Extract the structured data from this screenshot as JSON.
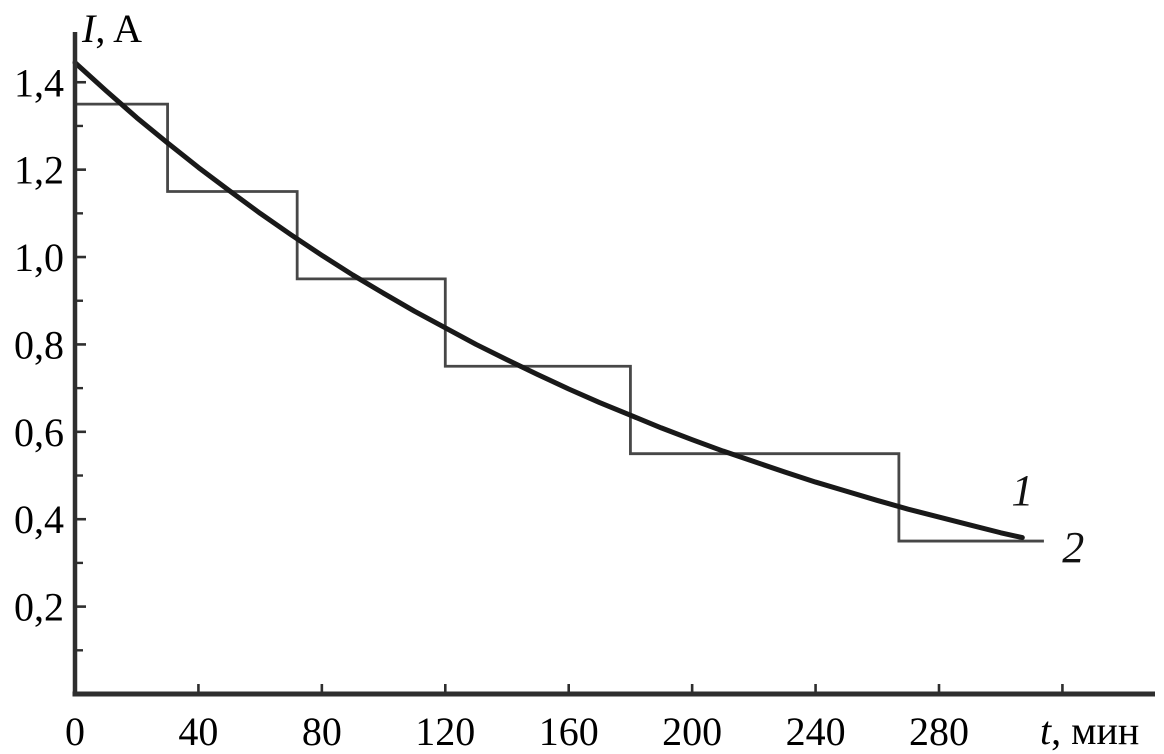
{
  "figure": {
    "background": "#ffffff",
    "axis_color": "#2e2e2e",
    "text_color": "#000000"
  },
  "chart_data": {
    "type": "line",
    "title": "",
    "xlabel": {
      "symbol": "t",
      "suffix": ", мин"
    },
    "ylabel": {
      "symbol": "I",
      "suffix": ", A"
    },
    "decimal_separator": ",",
    "grid": false,
    "legend_position": "inline-right",
    "axes": {
      "x": {
        "range": [
          0,
          350
        ],
        "labeled_ticks": [
          0,
          40,
          80,
          120,
          160,
          200,
          240,
          280
        ],
        "unlabeled_ticks": [
          320
        ]
      },
      "y": {
        "range": [
          0,
          1.515
        ],
        "major_ticks": [
          0.2,
          0.4,
          0.6,
          0.8,
          1.0,
          1.2,
          1.4
        ],
        "major_tick_labels": [
          "0,2",
          "0,4",
          "0,6",
          "0,8",
          "1,0",
          "1,2",
          "1,4"
        ],
        "minor_ticks": [
          0.1,
          0.3,
          0.5,
          0.7,
          0.9,
          1.1,
          1.3
        ]
      }
    },
    "series": [
      {
        "name": "smooth-discharge-curve",
        "label": "1",
        "kind": "smooth",
        "color": "#191919",
        "stroke_width": 5,
        "x": [
          0,
          10,
          20,
          30,
          40,
          50,
          60,
          70,
          80,
          90,
          100,
          110,
          120,
          130,
          140,
          150,
          160,
          170,
          180,
          190,
          200,
          210,
          220,
          230,
          240,
          250,
          260,
          270,
          280,
          290,
          300,
          307
        ],
        "y": [
          1.445,
          1.381,
          1.319,
          1.261,
          1.205,
          1.152,
          1.1,
          1.051,
          1.004,
          0.959,
          0.917,
          0.876,
          0.838,
          0.8,
          0.765,
          0.731,
          0.698,
          0.667,
          0.638,
          0.609,
          0.582,
          0.556,
          0.532,
          0.508,
          0.485,
          0.464,
          0.443,
          0.423,
          0.405,
          0.387,
          0.369,
          0.358
        ],
        "label_at": {
          "x": 307,
          "y": 0.467
        }
      },
      {
        "name": "step-discharge-curve",
        "label": "2",
        "kind": "step",
        "color": "#474747",
        "stroke_width": 2.8,
        "steps": [
          {
            "value": 1.35,
            "from": 0,
            "to": 30
          },
          {
            "value": 1.15,
            "from": 30,
            "to": 72
          },
          {
            "value": 0.95,
            "from": 72,
            "to": 120
          },
          {
            "value": 0.75,
            "from": 120,
            "to": 180
          },
          {
            "value": 0.55,
            "from": 180,
            "to": 267
          },
          {
            "value": 0.35,
            "from": 267,
            "to": 314
          }
        ],
        "label_at": {
          "x": 323.5,
          "y": 0.336
        }
      }
    ]
  }
}
